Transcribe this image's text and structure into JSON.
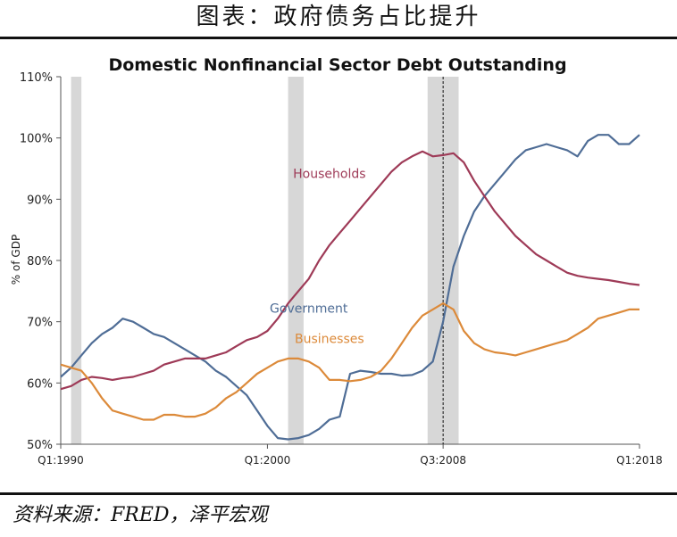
{
  "header": {
    "title": "图表：政府债务占比提升"
  },
  "footer": {
    "source": "资料来源：FRED，泽平宏观"
  },
  "chart_data": {
    "type": "line",
    "title": "Domestic Nonfinancial Sector Debt Outstanding",
    "ylabel": "% of GDP",
    "xlabel": "",
    "ylim": [
      50,
      110
    ],
    "yticks": [
      "50%",
      "60%",
      "70%",
      "80%",
      "90%",
      "100%",
      "110%"
    ],
    "yticks_values": [
      50,
      60,
      70,
      80,
      90,
      100,
      110
    ],
    "xlim": [
      1990.0,
      2018.0
    ],
    "xticks": [
      {
        "label": "Q1:1990",
        "value": 1990.0
      },
      {
        "label": "Q1:2000",
        "value": 2000.0
      },
      {
        "label": "Q3:2008",
        "value": 2008.5
      },
      {
        "label": "Q1:2018",
        "value": 2018.0
      }
    ],
    "marker_line": 2008.5,
    "recessions": [
      [
        1990.5,
        1991.0
      ],
      [
        2001.0,
        2001.75
      ],
      [
        2007.75,
        2009.25
      ]
    ],
    "grid": false,
    "legend": "none",
    "series": [
      {
        "name": "Government",
        "color": "#4f6d96",
        "label_at": [
          2002.0,
          71.5
        ],
        "x": [
          1990.0,
          1990.5,
          1991.0,
          1991.5,
          1992.0,
          1992.5,
          1993.0,
          1993.5,
          1994.0,
          1994.5,
          1995.0,
          1995.5,
          1996.0,
          1996.5,
          1997.0,
          1997.5,
          1998.0,
          1998.5,
          1999.0,
          1999.5,
          2000.0,
          2000.5,
          2001.0,
          2001.5,
          2002.0,
          2002.5,
          2003.0,
          2003.5,
          2004.0,
          2004.5,
          2005.0,
          2005.5,
          2006.0,
          2006.5,
          2007.0,
          2007.5,
          2008.0,
          2008.5,
          2009.0,
          2009.5,
          2010.0,
          2010.5,
          2011.0,
          2011.5,
          2012.0,
          2012.5,
          2013.0,
          2013.5,
          2014.0,
          2014.5,
          2015.0,
          2015.5,
          2016.0,
          2016.5,
          2017.0,
          2017.5,
          2018.0
        ],
        "values": [
          61.0,
          62.5,
          64.5,
          66.5,
          68.0,
          69.0,
          70.5,
          70.0,
          69.0,
          68.0,
          67.5,
          66.5,
          65.5,
          64.5,
          63.5,
          62.0,
          61.0,
          59.5,
          58.0,
          55.5,
          53.0,
          51.0,
          50.8,
          51.0,
          51.5,
          52.5,
          54.0,
          54.5,
          61.5,
          62.0,
          61.8,
          61.5,
          61.5,
          61.2,
          61.3,
          62.0,
          63.5,
          70.0,
          79.0,
          84.0,
          88.0,
          90.5,
          92.5,
          94.5,
          96.5,
          98.0,
          98.5,
          99.0,
          98.5,
          98.0,
          97.0,
          99.5,
          100.5,
          100.5,
          99.0,
          99.0,
          100.5
        ]
      },
      {
        "name": "Households",
        "color": "#9e3a57",
        "label_at": [
          2003.0,
          93.5
        ],
        "x": [
          1990.0,
          1990.5,
          1991.0,
          1991.5,
          1992.0,
          1992.5,
          1993.0,
          1993.5,
          1994.0,
          1994.5,
          1995.0,
          1995.5,
          1996.0,
          1996.5,
          1997.0,
          1997.5,
          1998.0,
          1998.5,
          1999.0,
          1999.5,
          2000.0,
          2000.5,
          2001.0,
          2001.5,
          2002.0,
          2002.5,
          2003.0,
          2003.5,
          2004.0,
          2004.5,
          2005.0,
          2005.5,
          2006.0,
          2006.5,
          2007.0,
          2007.5,
          2008.0,
          2008.5,
          2009.0,
          2009.5,
          2010.0,
          2010.5,
          2011.0,
          2011.5,
          2012.0,
          2012.5,
          2013.0,
          2013.5,
          2014.0,
          2014.5,
          2015.0,
          2015.5,
          2016.0,
          2016.5,
          2017.0,
          2017.5,
          2018.0
        ],
        "values": [
          59.0,
          59.5,
          60.5,
          61.0,
          60.8,
          60.5,
          60.8,
          61.0,
          61.5,
          62.0,
          63.0,
          63.5,
          64.0,
          64.0,
          64.0,
          64.5,
          65.0,
          66.0,
          67.0,
          67.5,
          68.5,
          70.5,
          73.0,
          75.0,
          77.0,
          80.0,
          82.5,
          84.5,
          86.5,
          88.5,
          90.5,
          92.5,
          94.5,
          96.0,
          97.0,
          97.8,
          97.0,
          97.2,
          97.5,
          96.0,
          93.0,
          90.5,
          88.0,
          86.0,
          84.0,
          82.5,
          81.0,
          80.0,
          79.0,
          78.0,
          77.5,
          77.2,
          77.0,
          76.8,
          76.5,
          76.2,
          76.0
        ]
      },
      {
        "name": "Businesses",
        "color": "#dc8a3a",
        "label_at": [
          2003.0,
          66.5
        ],
        "x": [
          1990.0,
          1990.5,
          1991.0,
          1991.5,
          1992.0,
          1992.5,
          1993.0,
          1993.5,
          1994.0,
          1994.5,
          1995.0,
          1995.5,
          1996.0,
          1996.5,
          1997.0,
          1997.5,
          1998.0,
          1998.5,
          1999.0,
          1999.5,
          2000.0,
          2000.5,
          2001.0,
          2001.5,
          2002.0,
          2002.5,
          2003.0,
          2003.5,
          2004.0,
          2004.5,
          2005.0,
          2005.5,
          2006.0,
          2006.5,
          2007.0,
          2007.5,
          2008.0,
          2008.5,
          2009.0,
          2009.5,
          2010.0,
          2010.5,
          2011.0,
          2011.5,
          2012.0,
          2012.5,
          2013.0,
          2013.5,
          2014.0,
          2014.5,
          2015.0,
          2015.5,
          2016.0,
          2016.5,
          2017.0,
          2017.5,
          2018.0
        ],
        "values": [
          63.0,
          62.5,
          62.0,
          60.0,
          57.5,
          55.5,
          55.0,
          54.5,
          54.0,
          54.0,
          54.8,
          54.8,
          54.5,
          54.5,
          55.0,
          56.0,
          57.5,
          58.5,
          60.0,
          61.5,
          62.5,
          63.5,
          64.0,
          64.0,
          63.5,
          62.5,
          60.5,
          60.5,
          60.3,
          60.5,
          61.0,
          62.0,
          64.0,
          66.5,
          69.0,
          71.0,
          72.0,
          73.0,
          72.0,
          68.5,
          66.5,
          65.5,
          65.0,
          64.8,
          64.5,
          65.0,
          65.5,
          66.0,
          66.5,
          67.0,
          68.0,
          69.0,
          70.5,
          71.0,
          71.5,
          72.0,
          72.0
        ]
      }
    ]
  }
}
